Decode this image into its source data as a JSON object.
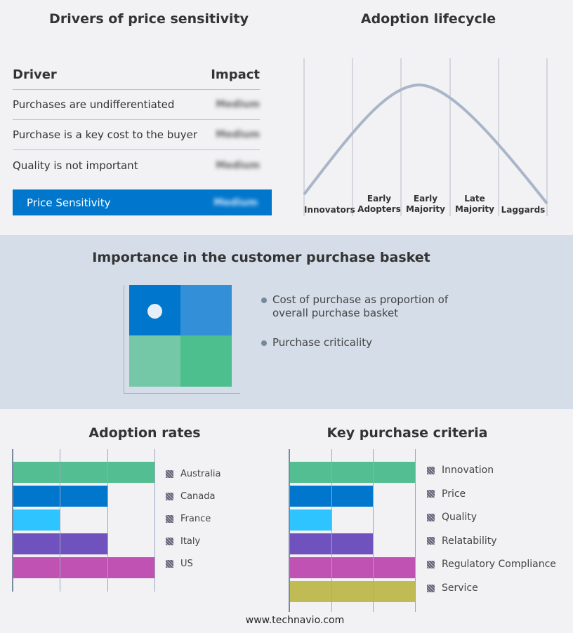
{
  "drivers": {
    "title": "Drivers of price sensitivity",
    "header_driver": "Driver",
    "header_impact": "Impact",
    "rows": [
      {
        "driver": "Purchases are undifferentiated",
        "impact": "Medium"
      },
      {
        "driver": "Purchase is a key cost to the buyer",
        "impact": "Medium"
      },
      {
        "driver": "Quality is not important",
        "impact": "Medium"
      }
    ],
    "summary": {
      "label": "Price Sensitivity",
      "impact": "Medium"
    },
    "accent": "#0077cc"
  },
  "lifecycle": {
    "title": "Adoption lifecycle",
    "stages": [
      "Innovators",
      "Early Adopters",
      "Early Majority",
      "Late Majority",
      "Laggards"
    ]
  },
  "basket": {
    "title": "Importance in the customer purchase basket",
    "legend": [
      "Cost of purchase as proportion of overall purchase basket",
      "Purchase criticality"
    ],
    "colors": [
      "#0077cc",
      "#3390d8",
      "#74c8a8",
      "#4dbe8e"
    ]
  },
  "chart_data": [
    {
      "type": "bar",
      "title": "Adoption rates",
      "categories": [
        "Australia",
        "Canada",
        "France",
        "Italy",
        "US"
      ],
      "values": [
        3,
        2,
        1,
        2,
        3
      ],
      "xlim": [
        0,
        3
      ],
      "grid": true,
      "legend": "right",
      "colors": [
        "#52be92",
        "#0077cc",
        "#2ec4ff",
        "#6f52bd",
        "#c052b4"
      ]
    },
    {
      "type": "bar",
      "title": "Key purchase criteria",
      "categories": [
        "Innovation",
        "Price",
        "Quality",
        "Relatability",
        "Regulatory Compliance",
        "Service"
      ],
      "values": [
        3,
        2,
        1,
        2,
        3,
        3
      ],
      "xlim": [
        0,
        3
      ],
      "grid": true,
      "legend": "right",
      "colors": [
        "#52be92",
        "#0077cc",
        "#2ec4ff",
        "#6f52bd",
        "#c052b4",
        "#c0bb55"
      ]
    }
  ],
  "footer": "www.technavio.com"
}
